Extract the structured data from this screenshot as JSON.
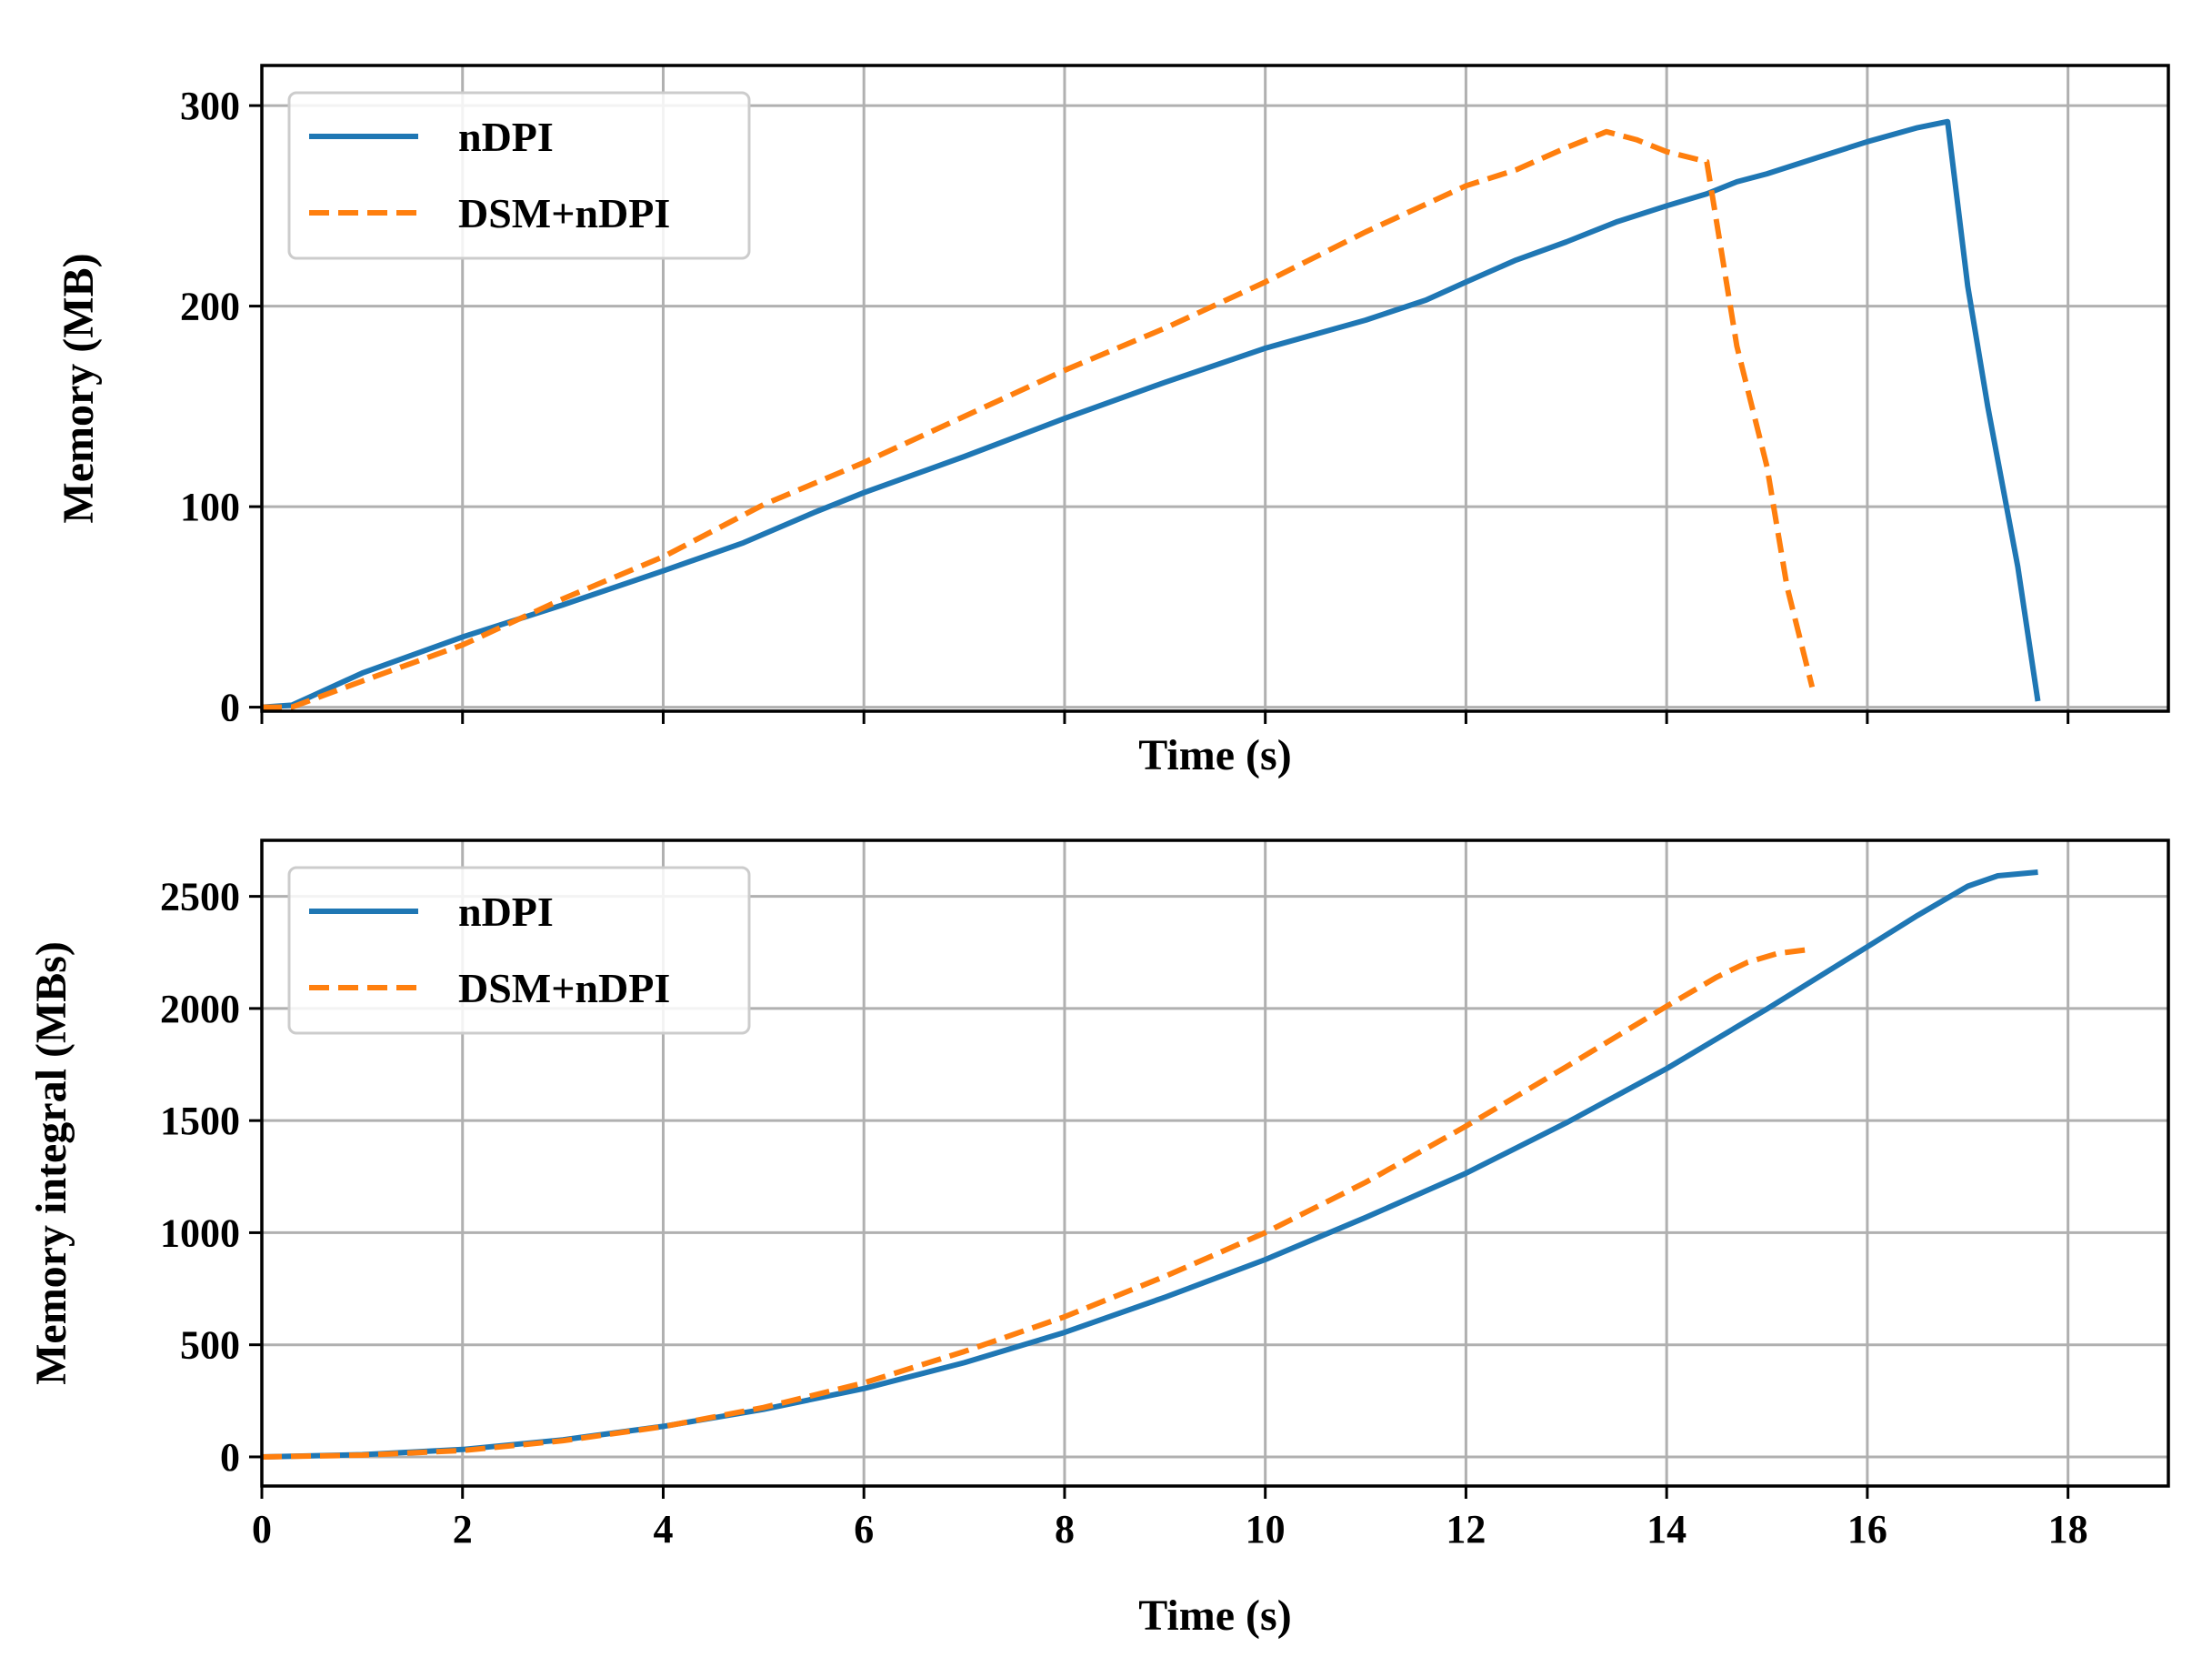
{
  "chart_data": [
    {
      "type": "line",
      "title": "",
      "xlabel": "Time (s)",
      "ylabel": "Memory (MB)",
      "xlim": [
        0,
        19
      ],
      "ylim": [
        -2,
        320
      ],
      "xticks": [
        0,
        2,
        4,
        6,
        8,
        10,
        12,
        14,
        16,
        18
      ],
      "show_xtick_labels": false,
      "yticks": [
        0,
        100,
        200,
        300
      ],
      "ytick_labels": [
        "0",
        "100",
        "200",
        "300"
      ],
      "grid": true,
      "legend_position": "top-left",
      "series": [
        {
          "name": "nDPI",
          "color": "#1f77b4",
          "style": "solid",
          "x": [
            0,
            0.3,
            1,
            2,
            3,
            4,
            4.8,
            5.5,
            6,
            7,
            8,
            9,
            10,
            11,
            11.6,
            12,
            12.5,
            13,
            13.5,
            14,
            14.4,
            14.7,
            15,
            15.5,
            16,
            16.5,
            16.8,
            17.0,
            17.2,
            17.5,
            17.7
          ],
          "y": [
            0,
            1,
            17,
            35,
            51,
            68,
            82,
            97,
            107,
            125,
            144,
            162,
            179,
            193,
            203,
            212,
            223,
            232,
            242,
            250,
            256,
            262,
            266,
            274,
            282,
            289,
            292,
            210,
            150,
            70,
            3
          ]
        },
        {
          "name": "DSM+nDPI",
          "color": "#ff7f0e",
          "style": "dashed",
          "x": [
            0,
            0.3,
            1,
            2,
            3,
            4,
            5,
            6,
            7,
            8,
            9,
            10,
            11,
            12,
            12.5,
            13,
            13.4,
            13.7,
            14,
            14.4,
            14.7,
            15.0,
            15.2,
            15.45
          ],
          "y": [
            0,
            0,
            13,
            31,
            54,
            75,
            101,
            122,
            145,
            168,
            189,
            212,
            237,
            260,
            268,
            279,
            287,
            283,
            277,
            272,
            180,
            120,
            60,
            10
          ]
        }
      ]
    },
    {
      "type": "line",
      "title": "",
      "xlabel": "Time (s)",
      "ylabel": "Memory integral (MBs)",
      "xlim": [
        0,
        19
      ],
      "ylim": [
        -130,
        2750
      ],
      "xticks": [
        0,
        2,
        4,
        6,
        8,
        10,
        12,
        14,
        16,
        18
      ],
      "xtick_labels": [
        "0",
        "2",
        "4",
        "6",
        "8",
        "10",
        "12",
        "14",
        "16",
        "18"
      ],
      "show_xtick_labels": true,
      "yticks": [
        0,
        500,
        1000,
        1500,
        2000,
        2500
      ],
      "ytick_labels": [
        "0",
        "500",
        "1000",
        "1500",
        "2000",
        "2500"
      ],
      "grid": true,
      "legend_position": "top-left",
      "series": [
        {
          "name": "nDPI",
          "color": "#1f77b4",
          "style": "solid",
          "x": [
            0,
            1,
            2,
            3,
            4,
            5,
            6,
            7,
            8,
            9,
            10,
            11,
            12,
            13,
            14,
            15,
            16,
            16.5,
            17,
            17.3,
            17.7
          ],
          "y": [
            0,
            10,
            33,
            76,
            136,
            212,
            305,
            420,
            555,
            712,
            880,
            1068,
            1265,
            1490,
            1732,
            1998,
            2275,
            2415,
            2545,
            2592,
            2608
          ]
        },
        {
          "name": "DSM+nDPI",
          "color": "#ff7f0e",
          "style": "dashed",
          "x": [
            0,
            1,
            2,
            3,
            4,
            5,
            6,
            7,
            8,
            9,
            10,
            11,
            12,
            13,
            14,
            14.5,
            14.8,
            15.1,
            15.45
          ],
          "y": [
            0,
            8,
            28,
            72,
            135,
            220,
            330,
            470,
            625,
            805,
            1000,
            1225,
            1475,
            1740,
            2010,
            2140,
            2205,
            2245,
            2265
          ]
        }
      ]
    }
  ]
}
